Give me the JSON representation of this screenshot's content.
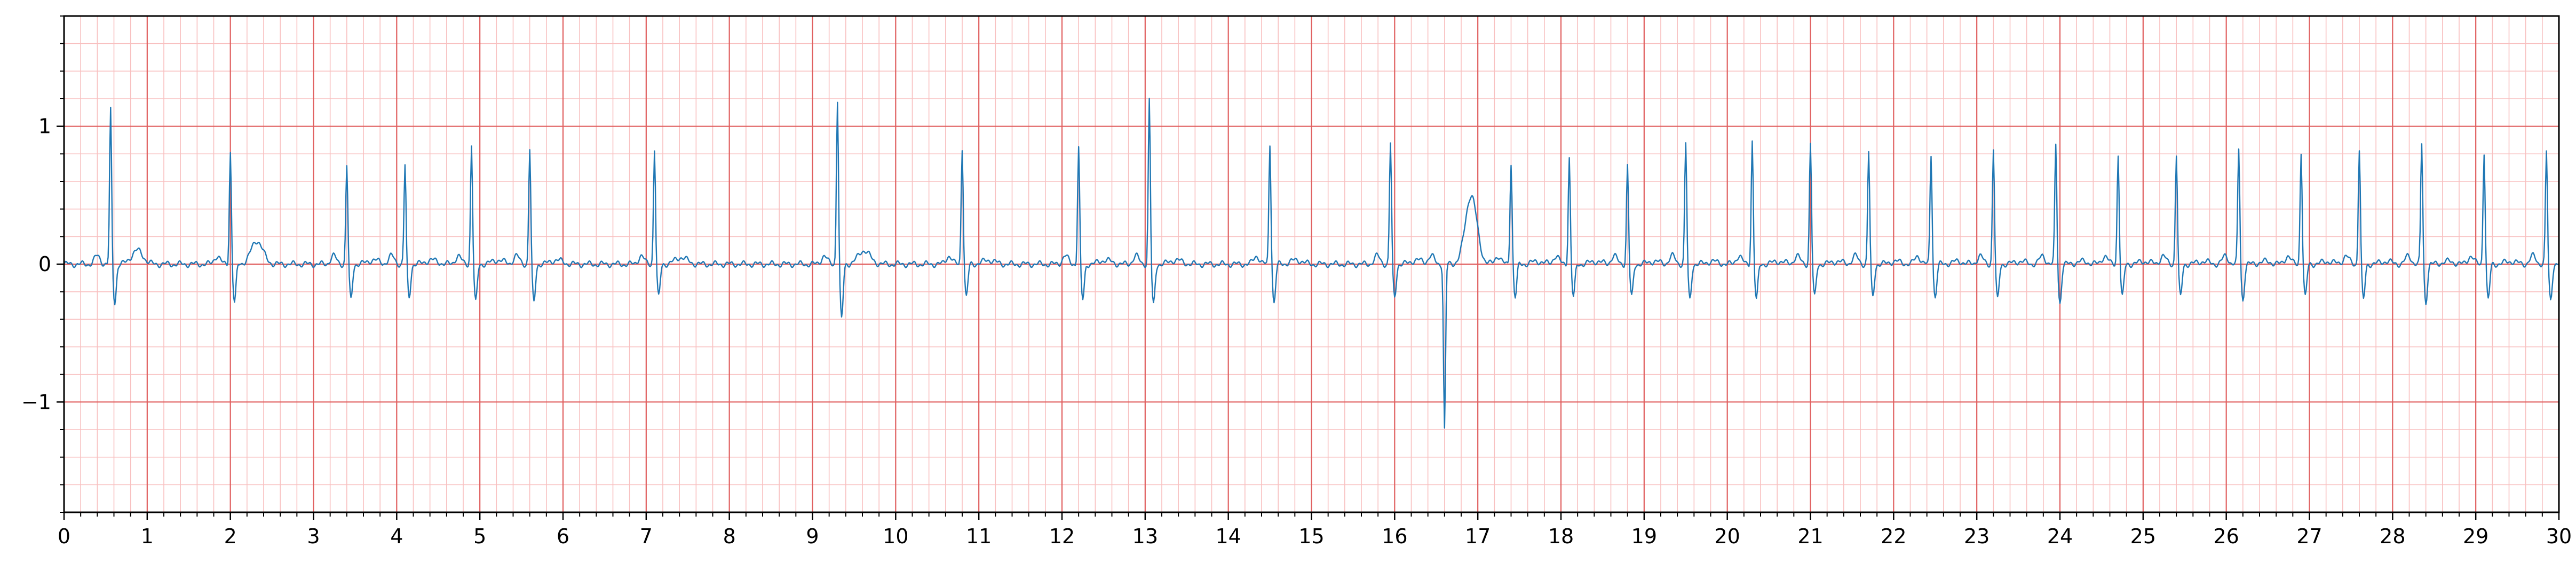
{
  "chart_data": {
    "type": "line",
    "title": "",
    "xlabel": "",
    "ylabel": "",
    "xlim": [
      0,
      30
    ],
    "ylim": [
      -1.8,
      1.8
    ],
    "x_ticks": [
      0,
      1,
      2,
      3,
      4,
      5,
      6,
      7,
      8,
      9,
      10,
      11,
      12,
      13,
      14,
      15,
      16,
      17,
      18,
      19,
      20,
      21,
      22,
      23,
      24,
      25,
      26,
      27,
      28,
      29,
      30
    ],
    "x_tick_labels": [
      "0",
      "1",
      "2",
      "3",
      "4",
      "5",
      "6",
      "7",
      "8",
      "9",
      "10",
      "11",
      "12",
      "13",
      "14",
      "15",
      "16",
      "17",
      "18",
      "19",
      "20",
      "21",
      "22",
      "23",
      "24",
      "25",
      "26",
      "27",
      "28",
      "29",
      "30"
    ],
    "y_ticks": [
      -1,
      0,
      1
    ],
    "y_tick_labels": [
      "−1",
      "0",
      "1"
    ],
    "grid": {
      "major_x_step": 1,
      "major_y_step": 1,
      "minor_x_step": 0.2,
      "minor_y_step": 0.2,
      "major_color": "#e06060",
      "minor_color": "#f8c0c0"
    },
    "series": [
      {
        "color": "#1f77b4",
        "sample_rate_hz": 100,
        "beats": [
          {
            "t": 0.56,
            "amp": 1.12,
            "s": -0.28,
            "tw": 0.1
          },
          {
            "t": 2.0,
            "amp": 0.82,
            "s": -0.28,
            "tw": 0.17
          },
          {
            "t": 3.4,
            "amp": 0.72,
            "s": -0.26,
            "tw": 0.03
          },
          {
            "t": 4.1,
            "amp": 0.72,
            "s": -0.24,
            "tw": 0.03
          },
          {
            "t": 4.9,
            "amp": 0.87,
            "s": -0.28,
            "tw": 0.03
          },
          {
            "t": 5.6,
            "amp": 0.84,
            "s": -0.28,
            "tw": 0.03
          },
          {
            "t": 7.1,
            "amp": 0.84,
            "s": -0.24,
            "tw": 0.05
          },
          {
            "t": 9.3,
            "amp": 1.2,
            "s": -0.4,
            "tw": 0.1
          },
          {
            "t": 10.8,
            "amp": 0.85,
            "s": -0.24,
            "tw": 0.03
          },
          {
            "t": 12.2,
            "amp": 0.85,
            "s": -0.26,
            "tw": 0.03
          },
          {
            "t": 13.05,
            "amp": 1.2,
            "s": -0.3,
            "tw": 0.03
          },
          {
            "t": 14.5,
            "amp": 0.88,
            "s": -0.28,
            "tw": 0.03
          },
          {
            "t": 15.95,
            "amp": 0.88,
            "s": -0.24,
            "tw": 0.03
          },
          {
            "t": 16.6,
            "amp": -1.2,
            "s": 0.0,
            "tw": 0.5
          },
          {
            "t": 17.4,
            "amp": 0.74,
            "s": -0.24,
            "tw": 0.02
          },
          {
            "t": 18.1,
            "amp": 0.78,
            "s": -0.24,
            "tw": 0.02
          },
          {
            "t": 18.8,
            "amp": 0.72,
            "s": -0.24,
            "tw": 0.02
          },
          {
            "t": 19.5,
            "amp": 0.88,
            "s": -0.26,
            "tw": 0.02
          },
          {
            "t": 20.3,
            "amp": 0.9,
            "s": -0.26,
            "tw": 0.02
          },
          {
            "t": 21.0,
            "amp": 0.88,
            "s": -0.24,
            "tw": 0.02
          },
          {
            "t": 21.7,
            "amp": 0.82,
            "s": -0.24,
            "tw": 0.02
          },
          {
            "t": 22.45,
            "amp": 0.8,
            "s": -0.24,
            "tw": 0.02
          },
          {
            "t": 23.2,
            "amp": 0.84,
            "s": -0.26,
            "tw": 0.02
          },
          {
            "t": 23.95,
            "amp": 0.87,
            "s": -0.28,
            "tw": 0.02
          },
          {
            "t": 24.7,
            "amp": 0.8,
            "s": -0.24,
            "tw": 0.02
          },
          {
            "t": 25.4,
            "amp": 0.8,
            "s": -0.24,
            "tw": 0.02
          },
          {
            "t": 26.15,
            "amp": 0.84,
            "s": -0.26,
            "tw": 0.02
          },
          {
            "t": 26.9,
            "amp": 0.82,
            "s": -0.24,
            "tw": 0.02
          },
          {
            "t": 27.6,
            "amp": 0.84,
            "s": -0.26,
            "tw": 0.02
          },
          {
            "t": 28.35,
            "amp": 0.88,
            "s": -0.28,
            "tw": 0.02
          },
          {
            "t": 29.1,
            "amp": 0.82,
            "s": -0.26,
            "tw": 0.02
          },
          {
            "t": 29.85,
            "amp": 0.82,
            "s": -0.26,
            "tw": 0.02
          }
        ]
      }
    ]
  }
}
